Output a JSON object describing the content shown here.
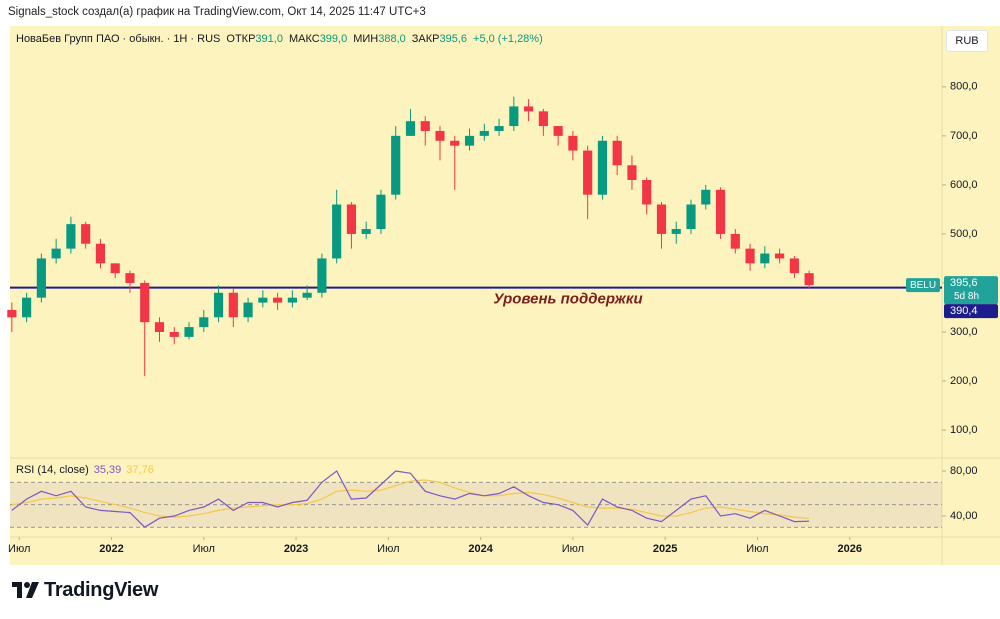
{
  "header": {
    "attribution": "Signals_stock создал(а) график на TradingView.com, Окт 14, 2025 11:47 UTC+3"
  },
  "chart_data": [
    {
      "type": "candlestick",
      "title": "НоваБев Групп ПАО · обыкн. · 1H · RUS",
      "ohlc_header": [
        [
          "ОТКР",
          "391,0"
        ],
        [
          "МАКС",
          "399,0"
        ],
        [
          "МИН",
          "388,0"
        ],
        [
          "ЗАКР",
          "395,6"
        ]
      ],
      "change": "+5,0 (+1,28%)",
      "currency": "RUB",
      "x": [
        2021.46,
        2021.54,
        2021.62,
        2021.7,
        2021.78,
        2021.86,
        2021.94,
        2022.02,
        2022.1,
        2022.18,
        2022.26,
        2022.34,
        2022.42,
        2022.5,
        2022.58,
        2022.66,
        2022.74,
        2022.82,
        2022.9,
        2022.98,
        2023.06,
        2023.14,
        2023.22,
        2023.3,
        2023.38,
        2023.46,
        2023.54,
        2023.62,
        2023.7,
        2023.78,
        2023.86,
        2023.94,
        2024.02,
        2024.1,
        2024.18,
        2024.26,
        2024.34,
        2024.42,
        2024.5,
        2024.58,
        2024.66,
        2024.74,
        2024.82,
        2024.9,
        2024.98,
        2025.06,
        2025.14,
        2025.22,
        2025.3,
        2025.38,
        2025.46,
        2025.54,
        2025.62,
        2025.7,
        2025.78
      ],
      "open": [
        345,
        330,
        370,
        450,
        470,
        520,
        480,
        440,
        420,
        400,
        320,
        300,
        290,
        310,
        330,
        380,
        330,
        360,
        370,
        360,
        370,
        380,
        450,
        560,
        500,
        510,
        580,
        700,
        730,
        710,
        690,
        680,
        700,
        710,
        720,
        760,
        750,
        720,
        700,
        670,
        580,
        690,
        640,
        610,
        560,
        500,
        510,
        560,
        590,
        500,
        470,
        440,
        460,
        450,
        420
      ],
      "high": [
        360,
        380,
        460,
        490,
        535,
        525,
        490,
        440,
        425,
        405,
        330,
        310,
        320,
        345,
        395,
        390,
        370,
        385,
        380,
        385,
        395,
        460,
        590,
        565,
        525,
        590,
        720,
        755,
        740,
        720,
        700,
        715,
        725,
        735,
        780,
        775,
        755,
        720,
        710,
        680,
        700,
        700,
        660,
        615,
        565,
        525,
        570,
        600,
        595,
        510,
        480,
        475,
        470,
        455,
        425
      ],
      "low": [
        300,
        320,
        360,
        440,
        460,
        470,
        430,
        410,
        380,
        210,
        280,
        275,
        285,
        300,
        320,
        310,
        320,
        350,
        345,
        350,
        365,
        370,
        440,
        470,
        490,
        500,
        570,
        700,
        680,
        650,
        590,
        670,
        690,
        700,
        710,
        730,
        700,
        680,
        650,
        530,
        570,
        620,
        590,
        540,
        470,
        480,
        500,
        550,
        490,
        460,
        425,
        430,
        440,
        410,
        388
      ],
      "close": [
        330,
        370,
        450,
        470,
        520,
        480,
        440,
        420,
        400,
        320,
        300,
        290,
        310,
        330,
        380,
        330,
        360,
        370,
        360,
        370,
        380,
        450,
        560,
        500,
        510,
        580,
        700,
        730,
        710,
        690,
        680,
        700,
        710,
        720,
        760,
        750,
        720,
        700,
        670,
        580,
        690,
        640,
        610,
        560,
        500,
        510,
        560,
        590,
        500,
        470,
        440,
        460,
        450,
        420,
        395.6
      ],
      "up_color": "#089981",
      "down_color": "#f23645",
      "xlim": [
        2021.45,
        2026.5
      ],
      "xticks": [
        {
          "value": 2021.5,
          "label": "Июл"
        },
        2022,
        {
          "value": 2022.5,
          "label": "Июл"
        },
        2023,
        {
          "value": 2023.5,
          "label": "Июл"
        },
        2024,
        {
          "value": 2024.5,
          "label": "Июл"
        },
        2025,
        {
          "value": 2025.5,
          "label": "Июл"
        },
        2026
      ],
      "ylim": [
        43,
        920
      ],
      "yticks": [
        {
          "value": 100,
          "label": "100,0"
        },
        {
          "value": 200,
          "label": "200,0"
        },
        {
          "value": 300,
          "label": "300,0"
        },
        {
          "value": 400,
          "label": "400,0"
        },
        {
          "value": 500,
          "label": "500,0"
        },
        {
          "value": 600,
          "label": "600,0"
        },
        {
          "value": 700,
          "label": "700,0"
        },
        {
          "value": 800,
          "label": "800,0"
        }
      ],
      "support": {
        "value": 390.4,
        "label": "390,4",
        "color": "#1c1c8c",
        "annotation": "Уровень поддержки"
      },
      "symbol_tag": "BELU",
      "last_price_label": "395,6",
      "countdown": "5d 8h"
    },
    {
      "type": "line",
      "title": "RSI (14, close)",
      "series": [
        {
          "color": "#7e57c2",
          "last_label": "35,39",
          "values": [
            45,
            55,
            62,
            58,
            62,
            48,
            45,
            44,
            43,
            30,
            38,
            40,
            45,
            48,
            55,
            45,
            52,
            52,
            48,
            52,
            54,
            70,
            80,
            55,
            56,
            68,
            80,
            78,
            62,
            58,
            55,
            60,
            58,
            60,
            66,
            58,
            52,
            50,
            45,
            32,
            55,
            48,
            45,
            38,
            35,
            45,
            55,
            58,
            40,
            42,
            38,
            45,
            40,
            35,
            35.39
          ]
        },
        {
          "color": "#f2c94c",
          "last_label": "37,76",
          "values": [
            50,
            52,
            55,
            56,
            58,
            56,
            53,
            50,
            47,
            43,
            40,
            39,
            40,
            42,
            45,
            47,
            48,
            49,
            50,
            50,
            51,
            55,
            62,
            63,
            62,
            63,
            67,
            71,
            72,
            70,
            65,
            61,
            58,
            58,
            60,
            61,
            59,
            56,
            52,
            48,
            47,
            47,
            46,
            43,
            40,
            40,
            43,
            47,
            48,
            46,
            44,
            42,
            41,
            39,
            37.76
          ]
        }
      ],
      "levels": [
        70,
        50,
        30
      ],
      "ylim": [
        21.3,
        91.6
      ],
      "yticks": [
        {
          "value": 40,
          "label": "40,00"
        },
        {
          "value": 80,
          "label": "80,00"
        }
      ]
    }
  ],
  "footer": {
    "logo": "TradingView"
  }
}
